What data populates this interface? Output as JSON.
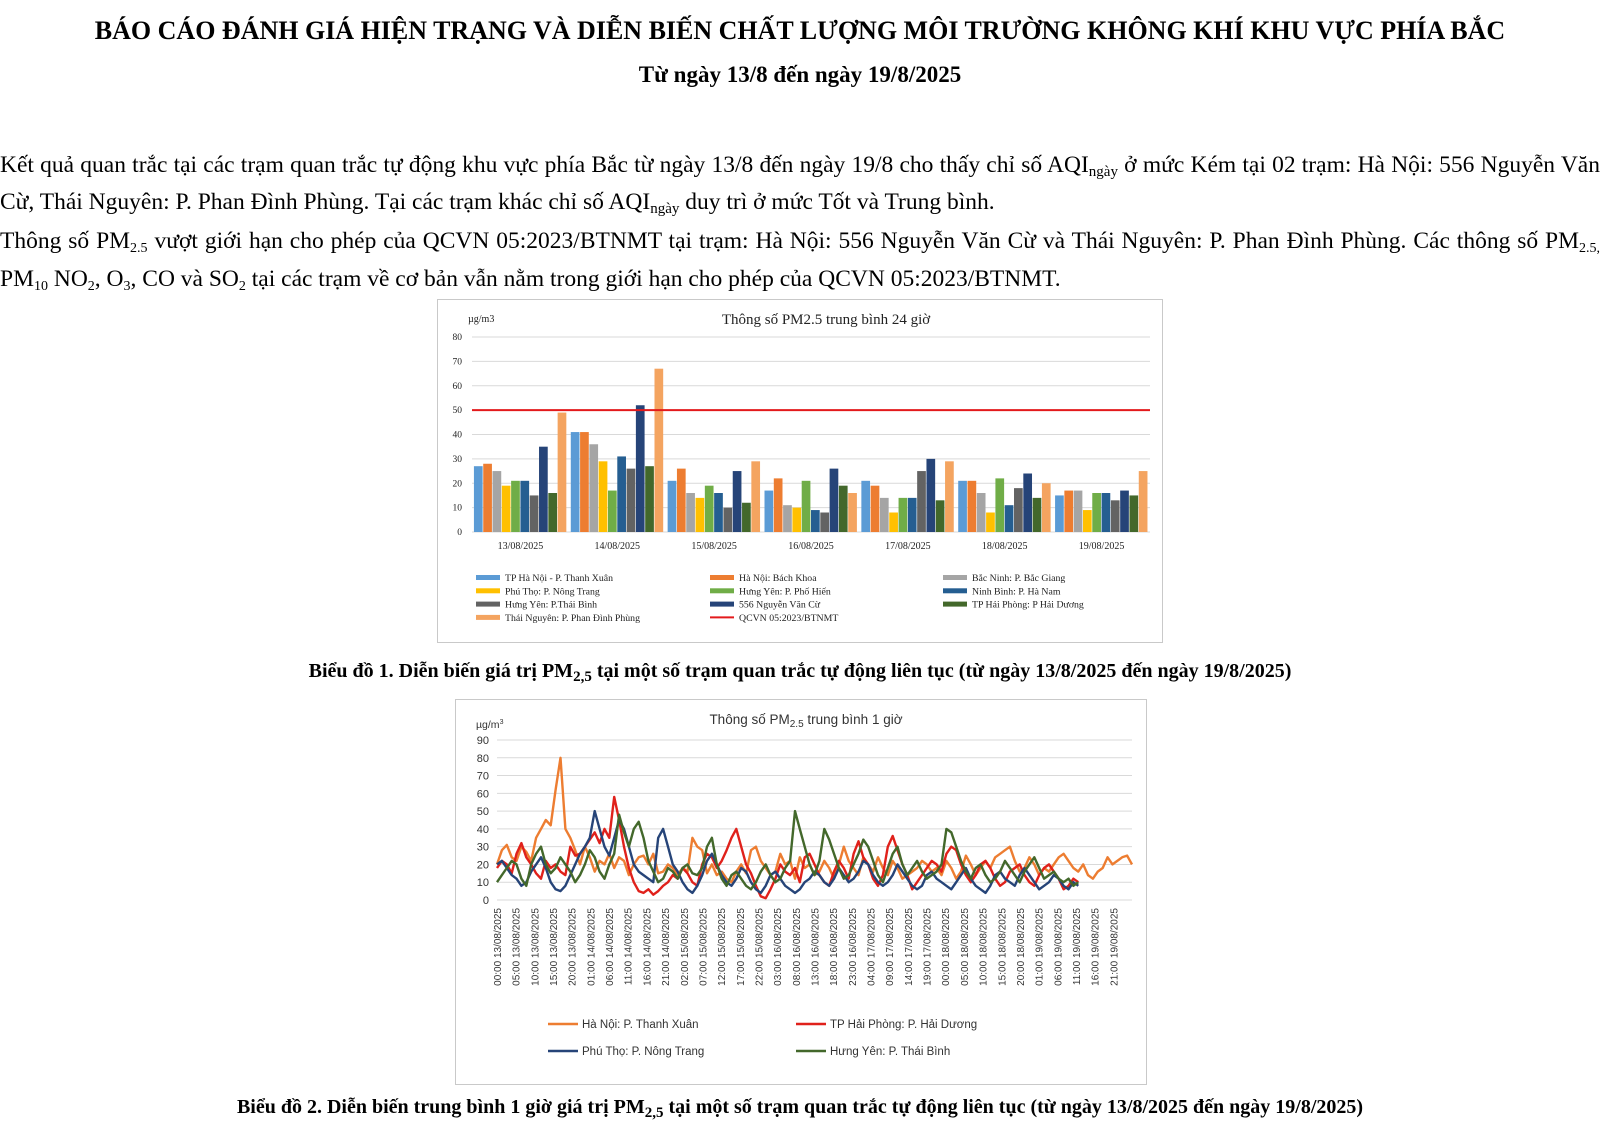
{
  "report": {
    "title": "BÁO CÁO ĐÁNH GIÁ HIỆN TRẠNG VÀ DIỄN BIẾN CHẤT LƯỢNG MÔI TRƯỜNG KHÔNG KHÍ KHU VỰC PHÍA BẮC",
    "subtitle": "Từ ngày 13/8 đến ngày 19/8/2025",
    "p1_a": "Kết quả quan trắc tại các trạm quan trắc tự động khu vực phía Bắc từ ngày 13/8 đến ngày 19/8 cho thấy chỉ số AQI",
    "p1_sub": "ngày",
    "p1_b": " ở mức Kém tại 02 trạm: Hà Nội: 556 Nguyễn Văn Cừ, Thái Nguyên: P. Phan Đình Phùng. Tại các trạm khác chỉ số AQI",
    "p1_sub2": "ngày",
    "p1_c": " duy trì ở mức Tốt và Trung bình.",
    "p2_a": "Thông số PM",
    "p2_sub_a": "2.5",
    "p2_b": " vượt giới hạn cho phép của QCVN 05:2023/BTNMT tại trạm: Hà Nội: 556 Nguyễn Văn Cừ và Thái Nguyên: P. Phan Đình Phùng. Các thông số PM",
    "p2_sub_b": "2.5,",
    "p2_c": " PM",
    "p2_sub_c": "10",
    "p2_d": "  NO",
    "p2_sub_d": "2",
    "p2_e": ", O",
    "p2_sub_e": "3",
    "p2_f": ", CO và SO",
    "p2_sub_f": "2",
    "p2_g": " tại các trạm về cơ bản vẫn nằm trong giới hạn cho phép của QCVN 05:2023/BTNMT.",
    "caption1_a": "Biểu đồ 1. Diễn biến giá trị PM",
    "caption1_sub": "2,5",
    "caption1_b": " tại một số trạm quan trắc tự động liên tục (từ ngày 13/8/2025 đến ngày 19/8/2025)",
    "caption2_a": "Biểu đồ 2. Diễn biến trung bình 1 giờ giá trị PM",
    "caption2_sub": "2,5",
    "caption2_b": " tại một số trạm quan trắc tự động liên tục (từ ngày 13/8/2025 đến ngày 19/8/2025)"
  },
  "chart_data": [
    {
      "type": "bar",
      "title": "Thông số PM2.5 trung bình 24 giờ",
      "ylabel": "µg/m3",
      "ylim": [
        0,
        80
      ],
      "yticks": [
        0,
        10,
        20,
        30,
        40,
        50,
        60,
        70,
        80
      ],
      "grid": true,
      "legend": "bottom",
      "categories": [
        "13/08/2025",
        "14/08/2025",
        "15/08/2025",
        "16/08/2025",
        "17/08/2025",
        "18/08/2025",
        "19/08/2025"
      ],
      "series": [
        {
          "name": "TP Hà Nội - P. Thanh Xuân",
          "color": "#5b9bd5",
          "values": [
            27,
            41,
            21,
            17,
            21,
            21,
            15
          ]
        },
        {
          "name": "Hà Nội: Bách Khoa",
          "color": "#ed7d31",
          "values": [
            28,
            41,
            26,
            22,
            19,
            21,
            17
          ]
        },
        {
          "name": "Bắc Ninh: P. Bắc Giang",
          "color": "#a5a5a5",
          "values": [
            25,
            36,
            16,
            11,
            14,
            16,
            17
          ]
        },
        {
          "name": "Phú Thọ: P. Nông Trang",
          "color": "#ffc000",
          "values": [
            19,
            29,
            14,
            10,
            8,
            8,
            9
          ]
        },
        {
          "name": "Hưng Yên: P. Phố Hiến",
          "color": "#70ad47",
          "values": [
            21,
            17,
            19,
            21,
            14,
            22,
            16
          ]
        },
        {
          "name": "Ninh Bình: P. Hà Nam",
          "color": "#255e91",
          "values": [
            21,
            31,
            16,
            9,
            14,
            11,
            16
          ]
        },
        {
          "name": "Hưng Yên: P.Thái Bình",
          "color": "#636363",
          "values": [
            15,
            26,
            10,
            8,
            25,
            18,
            13
          ]
        },
        {
          "name": "556 Nguyễn Văn Cừ",
          "color": "#264478",
          "values": [
            35,
            52,
            25,
            26,
            30,
            24,
            17
          ]
        },
        {
          "name": "TP Hải Phòng: P Hải Dương",
          "color": "#43682b",
          "values": [
            16,
            27,
            12,
            19,
            13,
            14,
            15
          ]
        },
        {
          "name": "Thái Nguyên: P. Phan Đình Phùng",
          "color": "#f4a460",
          "values": [
            49,
            67,
            29,
            16,
            29,
            20,
            25
          ]
        }
      ],
      "reference_line": {
        "name": "QCVN 05:2023/BTNMT",
        "value": 50,
        "color": "#e31a1c"
      }
    },
    {
      "type": "line",
      "title_a": "Thông số PM",
      "title_sub": "2.5",
      "title_b": " trung bình 1 giờ",
      "ylabel": "µg/m",
      "ylabel_sup": "3",
      "ylim": [
        0,
        90
      ],
      "yticks": [
        0,
        10,
        20,
        30,
        40,
        50,
        60,
        70,
        80,
        90
      ],
      "grid": true,
      "legend": "bottom",
      "x_tick_labels": [
        "00:00 13/08/2025",
        "05:00 13/08/2025",
        "10:00 13/08/2025",
        "15:00 13/08/2025",
        "20:00 13/08/2025",
        "01:00 14/08/2025",
        "06:00 14/08/2025",
        "11:00 14/08/2025",
        "16:00 14/08/2025",
        "21:00 14/08/2025",
        "02:00 15/08/2025",
        "07:00 15/08/2025",
        "12:00 15/08/2025",
        "17:00 15/08/2025",
        "22:00 15/08/2025",
        "03:00 16/08/2025",
        "08:00 16/08/2025",
        "13:00 16/08/2025",
        "18:00 16/08/2025",
        "23:00 16/08/2025",
        "04:00 17/08/2025",
        "09:00 17/08/2025",
        "14:00 17/08/2025",
        "19:00 17/08/2025",
        "00:00 18/08/2025",
        "05:00 18/08/2025",
        "10:00 18/08/2025",
        "15:00 18/08/2025",
        "20:00 18/08/2025",
        "01:00 19/08/2025",
        "06:00 19/08/2025",
        "11:00 19/08/2025",
        "16:00 19/08/2025",
        "21:00 19/08/2025"
      ],
      "x_step_hours": 5,
      "series": [
        {
          "name": "Hà Nội: P. Thanh Xuân",
          "color": "#ed7d31",
          "values": [
            20,
            28,
            31,
            24,
            22,
            30,
            27,
            22,
            35,
            40,
            45,
            42,
            62,
            80,
            40,
            35,
            28,
            20,
            30,
            24,
            16,
            22,
            20,
            26,
            18,
            24,
            22,
            14,
            20,
            24,
            25,
            20,
            26,
            15,
            16,
            20,
            18,
            14,
            18,
            16,
            35,
            30,
            28,
            15,
            20,
            14,
            16,
            12,
            10,
            16,
            20,
            15,
            28,
            30,
            22,
            18,
            14,
            16,
            26,
            20,
            22,
            12,
            24,
            18,
            20,
            14,
            16,
            22,
            18,
            12,
            20,
            30,
            22,
            18,
            14,
            24,
            20,
            16,
            24,
            18,
            14,
            22,
            18,
            12,
            14,
            16,
            18,
            22,
            20,
            16,
            18,
            14,
            22,
            18,
            12,
            16,
            25,
            20,
            14,
            18,
            22,
            18,
            24,
            26,
            28,
            30,
            22,
            16,
            18,
            24,
            20,
            14,
            18,
            16,
            20,
            24,
            26,
            22,
            18,
            16,
            20,
            14,
            12,
            16,
            18,
            24,
            20,
            22,
            24,
            25,
            20
          ]
        },
        {
          "name": "TP Hải Phòng: P. Hải Dương",
          "color": "#e0211b",
          "values": [
            18,
            22,
            20,
            15,
            26,
            32,
            24,
            20,
            15,
            12,
            22,
            18,
            20,
            16,
            14,
            30,
            25,
            26,
            30,
            34,
            38,
            32,
            40,
            35,
            58,
            45,
            30,
            18,
            10,
            5,
            4,
            6,
            3,
            5,
            8,
            10,
            14,
            12,
            18,
            15,
            10,
            8,
            20,
            26,
            24,
            18,
            22,
            28,
            35,
            40,
            30,
            20,
            15,
            8,
            2,
            1,
            6,
            12,
            20,
            16,
            14,
            18,
            10,
            24,
            26,
            20,
            14,
            10,
            8,
            16,
            22,
            18,
            12,
            26,
            33,
            24,
            20,
            12,
            8,
            14,
            30,
            36,
            28,
            20,
            14,
            6,
            10,
            14,
            18,
            22,
            20,
            16,
            26,
            30,
            28,
            20,
            14,
            10,
            14,
            20,
            22,
            18,
            12,
            8,
            10,
            16,
            18,
            20,
            14,
            10,
            8,
            14,
            18,
            20,
            16,
            12,
            6,
            8,
            12,
            10
          ]
        },
        {
          "name": "Phú Thọ: P. Nông Trang",
          "color": "#264478",
          "values": [
            20,
            22,
            18,
            14,
            12,
            8,
            10,
            16,
            20,
            24,
            18,
            10,
            6,
            5,
            8,
            14,
            20,
            26,
            30,
            35,
            50,
            40,
            30,
            25,
            35,
            45,
            40,
            30,
            20,
            16,
            14,
            12,
            10,
            35,
            40,
            30,
            20,
            16,
            10,
            6,
            4,
            8,
            14,
            22,
            26,
            20,
            14,
            10,
            8,
            12,
            18,
            16,
            10,
            6,
            4,
            8,
            14,
            16,
            12,
            8,
            6,
            4,
            6,
            10,
            12,
            16,
            14,
            10,
            8,
            12,
            18,
            14,
            10,
            12,
            16,
            22,
            20,
            14,
            10,
            8,
            10,
            14,
            20,
            16,
            12,
            8,
            6,
            8,
            14,
            16,
            12,
            10,
            8,
            6,
            10,
            14,
            18,
            12,
            8,
            6,
            4,
            8,
            14,
            16,
            12,
            10,
            8,
            14,
            18,
            14,
            10,
            6,
            8,
            10,
            14,
            12,
            8,
            6,
            10,
            8
          ]
        },
        {
          "name": "Hưng Yên: P. Thái Bình",
          "color": "#43682b",
          "values": [
            10,
            14,
            18,
            22,
            20,
            12,
            8,
            20,
            26,
            30,
            20,
            15,
            18,
            24,
            20,
            16,
            10,
            14,
            20,
            28,
            24,
            16,
            12,
            20,
            26,
            48,
            38,
            30,
            40,
            44,
            35,
            22,
            16,
            10,
            12,
            18,
            16,
            12,
            18,
            20,
            15,
            14,
            18,
            30,
            35,
            20,
            12,
            8,
            14,
            16,
            12,
            8,
            6,
            10,
            16,
            20,
            14,
            10,
            12,
            18,
            22,
            50,
            40,
            30,
            20,
            14,
            22,
            40,
            34,
            26,
            18,
            12,
            14,
            20,
            26,
            34,
            30,
            22,
            14,
            10,
            18,
            26,
            30,
            20,
            14,
            18,
            22,
            16,
            12,
            14,
            16,
            20,
            40,
            38,
            30,
            22,
            16,
            12,
            18,
            20,
            14,
            10,
            12,
            16,
            22,
            18,
            14,
            10,
            16,
            20,
            24,
            18,
            12,
            14,
            16,
            12,
            10,
            12,
            8,
            10
          ]
        }
      ]
    }
  ]
}
